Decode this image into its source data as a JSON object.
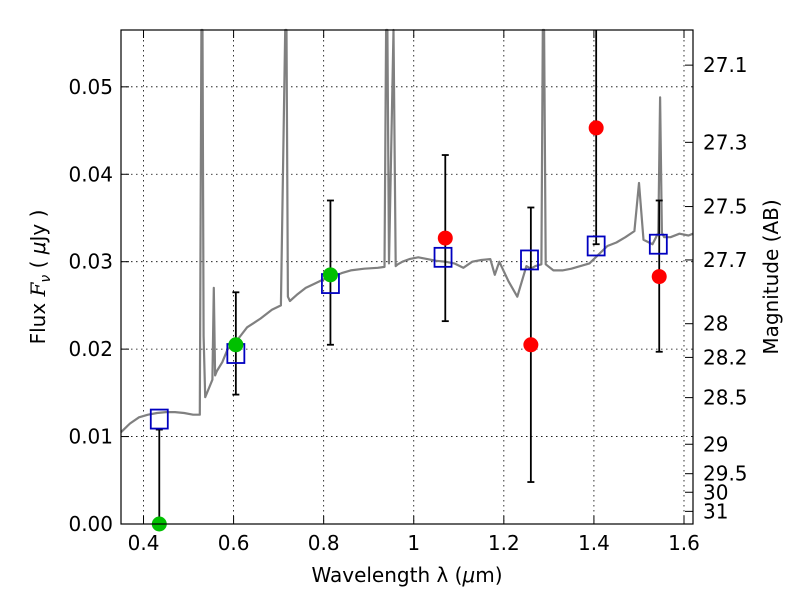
{
  "chart_data": {
    "type": "scatter",
    "xlabel_text": "Wavelength  λ (",
    "xlabel_unit_mu": "μ",
    "xlabel_unit_rest": "m)",
    "ylabel_text_flux": "Flux  ",
    "ylabel_symbol": "F",
    "ylabel_sub": "ν",
    "ylabel_unit_open": "  ( ",
    "ylabel_unit_mu": "μ",
    "ylabel_unit_rest": "Jy )",
    "y2label": "Magnitude (AB)",
    "xlim": [
      0.35,
      1.62
    ],
    "ylim": [
      0.0,
      0.0565
    ],
    "grid": true,
    "x_ticks": [
      {
        "value": 0.4,
        "label": "0.4"
      },
      {
        "value": 0.6,
        "label": "0.6"
      },
      {
        "value": 0.8,
        "label": "0.8"
      },
      {
        "value": 1.0,
        "label": "1"
      },
      {
        "value": 1.2,
        "label": "1.2"
      },
      {
        "value": 1.4,
        "label": "1.4"
      },
      {
        "value": 1.6,
        "label": "1.6"
      }
    ],
    "y_ticks": [
      {
        "value": 0.0,
        "label": "0.00"
      },
      {
        "value": 0.01,
        "label": "0.01"
      },
      {
        "value": 0.02,
        "label": "0.02"
      },
      {
        "value": 0.03,
        "label": "0.03"
      },
      {
        "value": 0.04,
        "label": "0.04"
      },
      {
        "value": 0.05,
        "label": "0.05"
      }
    ],
    "mag_ticks": [
      {
        "mag": 27.1,
        "label": "27.1"
      },
      {
        "mag": 27.3,
        "label": "27.3"
      },
      {
        "mag": 27.5,
        "label": "27.5"
      },
      {
        "mag": 27.7,
        "label": "27.7"
      },
      {
        "mag": 28.0,
        "label": "28"
      },
      {
        "mag": 28.2,
        "label": "28.2"
      },
      {
        "mag": 28.5,
        "label": "28.5"
      },
      {
        "mag": 29.0,
        "label": "29"
      },
      {
        "mag": 29.5,
        "label": "29.5"
      },
      {
        "mag": 30.0,
        "label": "30"
      },
      {
        "mag": 31.0,
        "label": "31"
      }
    ],
    "series": [
      {
        "name": "model-spectrum",
        "kind": "line",
        "color": "#808080",
        "x": [
          0.35,
          0.37,
          0.39,
          0.41,
          0.43,
          0.45,
          0.47,
          0.49,
          0.51,
          0.525,
          0.5285,
          0.531,
          0.5335,
          0.537,
          0.545,
          0.553,
          0.556,
          0.559,
          0.563,
          0.575,
          0.587,
          0.6,
          0.615,
          0.63,
          0.645,
          0.66,
          0.685,
          0.705,
          0.7145,
          0.7175,
          0.7205,
          0.725,
          0.74,
          0.76,
          0.78,
          0.8,
          0.82,
          0.84,
          0.86,
          0.89,
          0.92,
          0.935,
          0.9385,
          0.9415,
          0.945,
          0.955,
          0.96,
          0.9645,
          0.975,
          0.99,
          1.01,
          1.03,
          1.05,
          1.07,
          1.09,
          1.11,
          1.13,
          1.15,
          1.17,
          1.18,
          1.19,
          1.21,
          1.23,
          1.25,
          1.26,
          1.27,
          1.2835,
          1.2865,
          1.2895,
          1.293,
          1.31,
          1.33,
          1.35,
          1.37,
          1.39,
          1.41,
          1.43,
          1.45,
          1.47,
          1.49,
          1.5,
          1.51,
          1.53,
          1.543,
          1.547,
          1.551,
          1.556,
          1.57,
          1.59,
          1.61,
          1.62
        ],
        "y": [
          0.0105,
          0.0115,
          0.0122,
          0.0125,
          0.0127,
          0.0128,
          0.0128,
          0.0127,
          0.0125,
          0.0125,
          0.0565,
          0.0565,
          0.0215,
          0.0145,
          0.0155,
          0.0165,
          0.027,
          0.017,
          0.0175,
          0.0185,
          0.02,
          0.0205,
          0.0215,
          0.0225,
          0.023,
          0.0235,
          0.0245,
          0.025,
          0.0565,
          0.0565,
          0.026,
          0.0255,
          0.0262,
          0.027,
          0.0275,
          0.028,
          0.0283,
          0.0287,
          0.029,
          0.0292,
          0.0293,
          0.0294,
          0.0565,
          0.0565,
          0.0298,
          0.0565,
          0.0295,
          0.0297,
          0.03,
          0.0303,
          0.0305,
          0.0303,
          0.0301,
          0.03,
          0.0298,
          0.0293,
          0.03,
          0.0302,
          0.0303,
          0.0285,
          0.03,
          0.0278,
          0.026,
          0.0295,
          0.0292,
          0.0295,
          0.0297,
          0.0565,
          0.0565,
          0.0297,
          0.029,
          0.029,
          0.0292,
          0.0295,
          0.0298,
          0.0308,
          0.0318,
          0.0322,
          0.0328,
          0.0335,
          0.039,
          0.0325,
          0.032,
          0.0333,
          0.0488,
          0.0333,
          0.0328,
          0.0328,
          0.0332,
          0.033,
          0.0332
        ]
      },
      {
        "name": "photometry",
        "kind": "scatter-errorbar",
        "marker": "filled-circle",
        "points": [
          {
            "x": 0.435,
            "y": 0.0,
            "yerr_lo": 0.0,
            "yerr_hi": 0.0108,
            "color": "#00c000"
          },
          {
            "x": 0.605,
            "y": 0.0205,
            "yerr_lo": 0.0057,
            "yerr_hi": 0.006,
            "color": "#00c000"
          },
          {
            "x": 0.815,
            "y": 0.0285,
            "yerr_lo": 0.008,
            "yerr_hi": 0.0085,
            "color": "#00c000"
          },
          {
            "x": 1.07,
            "y": 0.0327,
            "yerr_lo": 0.0095,
            "yerr_hi": 0.0095,
            "color": "#ff0000"
          },
          {
            "x": 1.26,
            "y": 0.0205,
            "yerr_lo": 0.0157,
            "yerr_hi": 0.0157,
            "color": "#ff0000"
          },
          {
            "x": 1.405,
            "y": 0.0453,
            "yerr_lo": 0.0133,
            "yerr_hi": 0.0137,
            "color": "#ff0000"
          },
          {
            "x": 1.545,
            "y": 0.0283,
            "yerr_lo": 0.0086,
            "yerr_hi": 0.0087,
            "color": "#ff0000"
          }
        ]
      },
      {
        "name": "model-photometry",
        "kind": "scatter",
        "marker": "open-square",
        "color": "#0000c0",
        "x": [
          0.435,
          0.605,
          0.815,
          1.065,
          1.257,
          1.405,
          1.543
        ],
        "y": [
          0.012,
          0.0195,
          0.0275,
          0.0305,
          0.0302,
          0.0318,
          0.032
        ]
      }
    ]
  }
}
